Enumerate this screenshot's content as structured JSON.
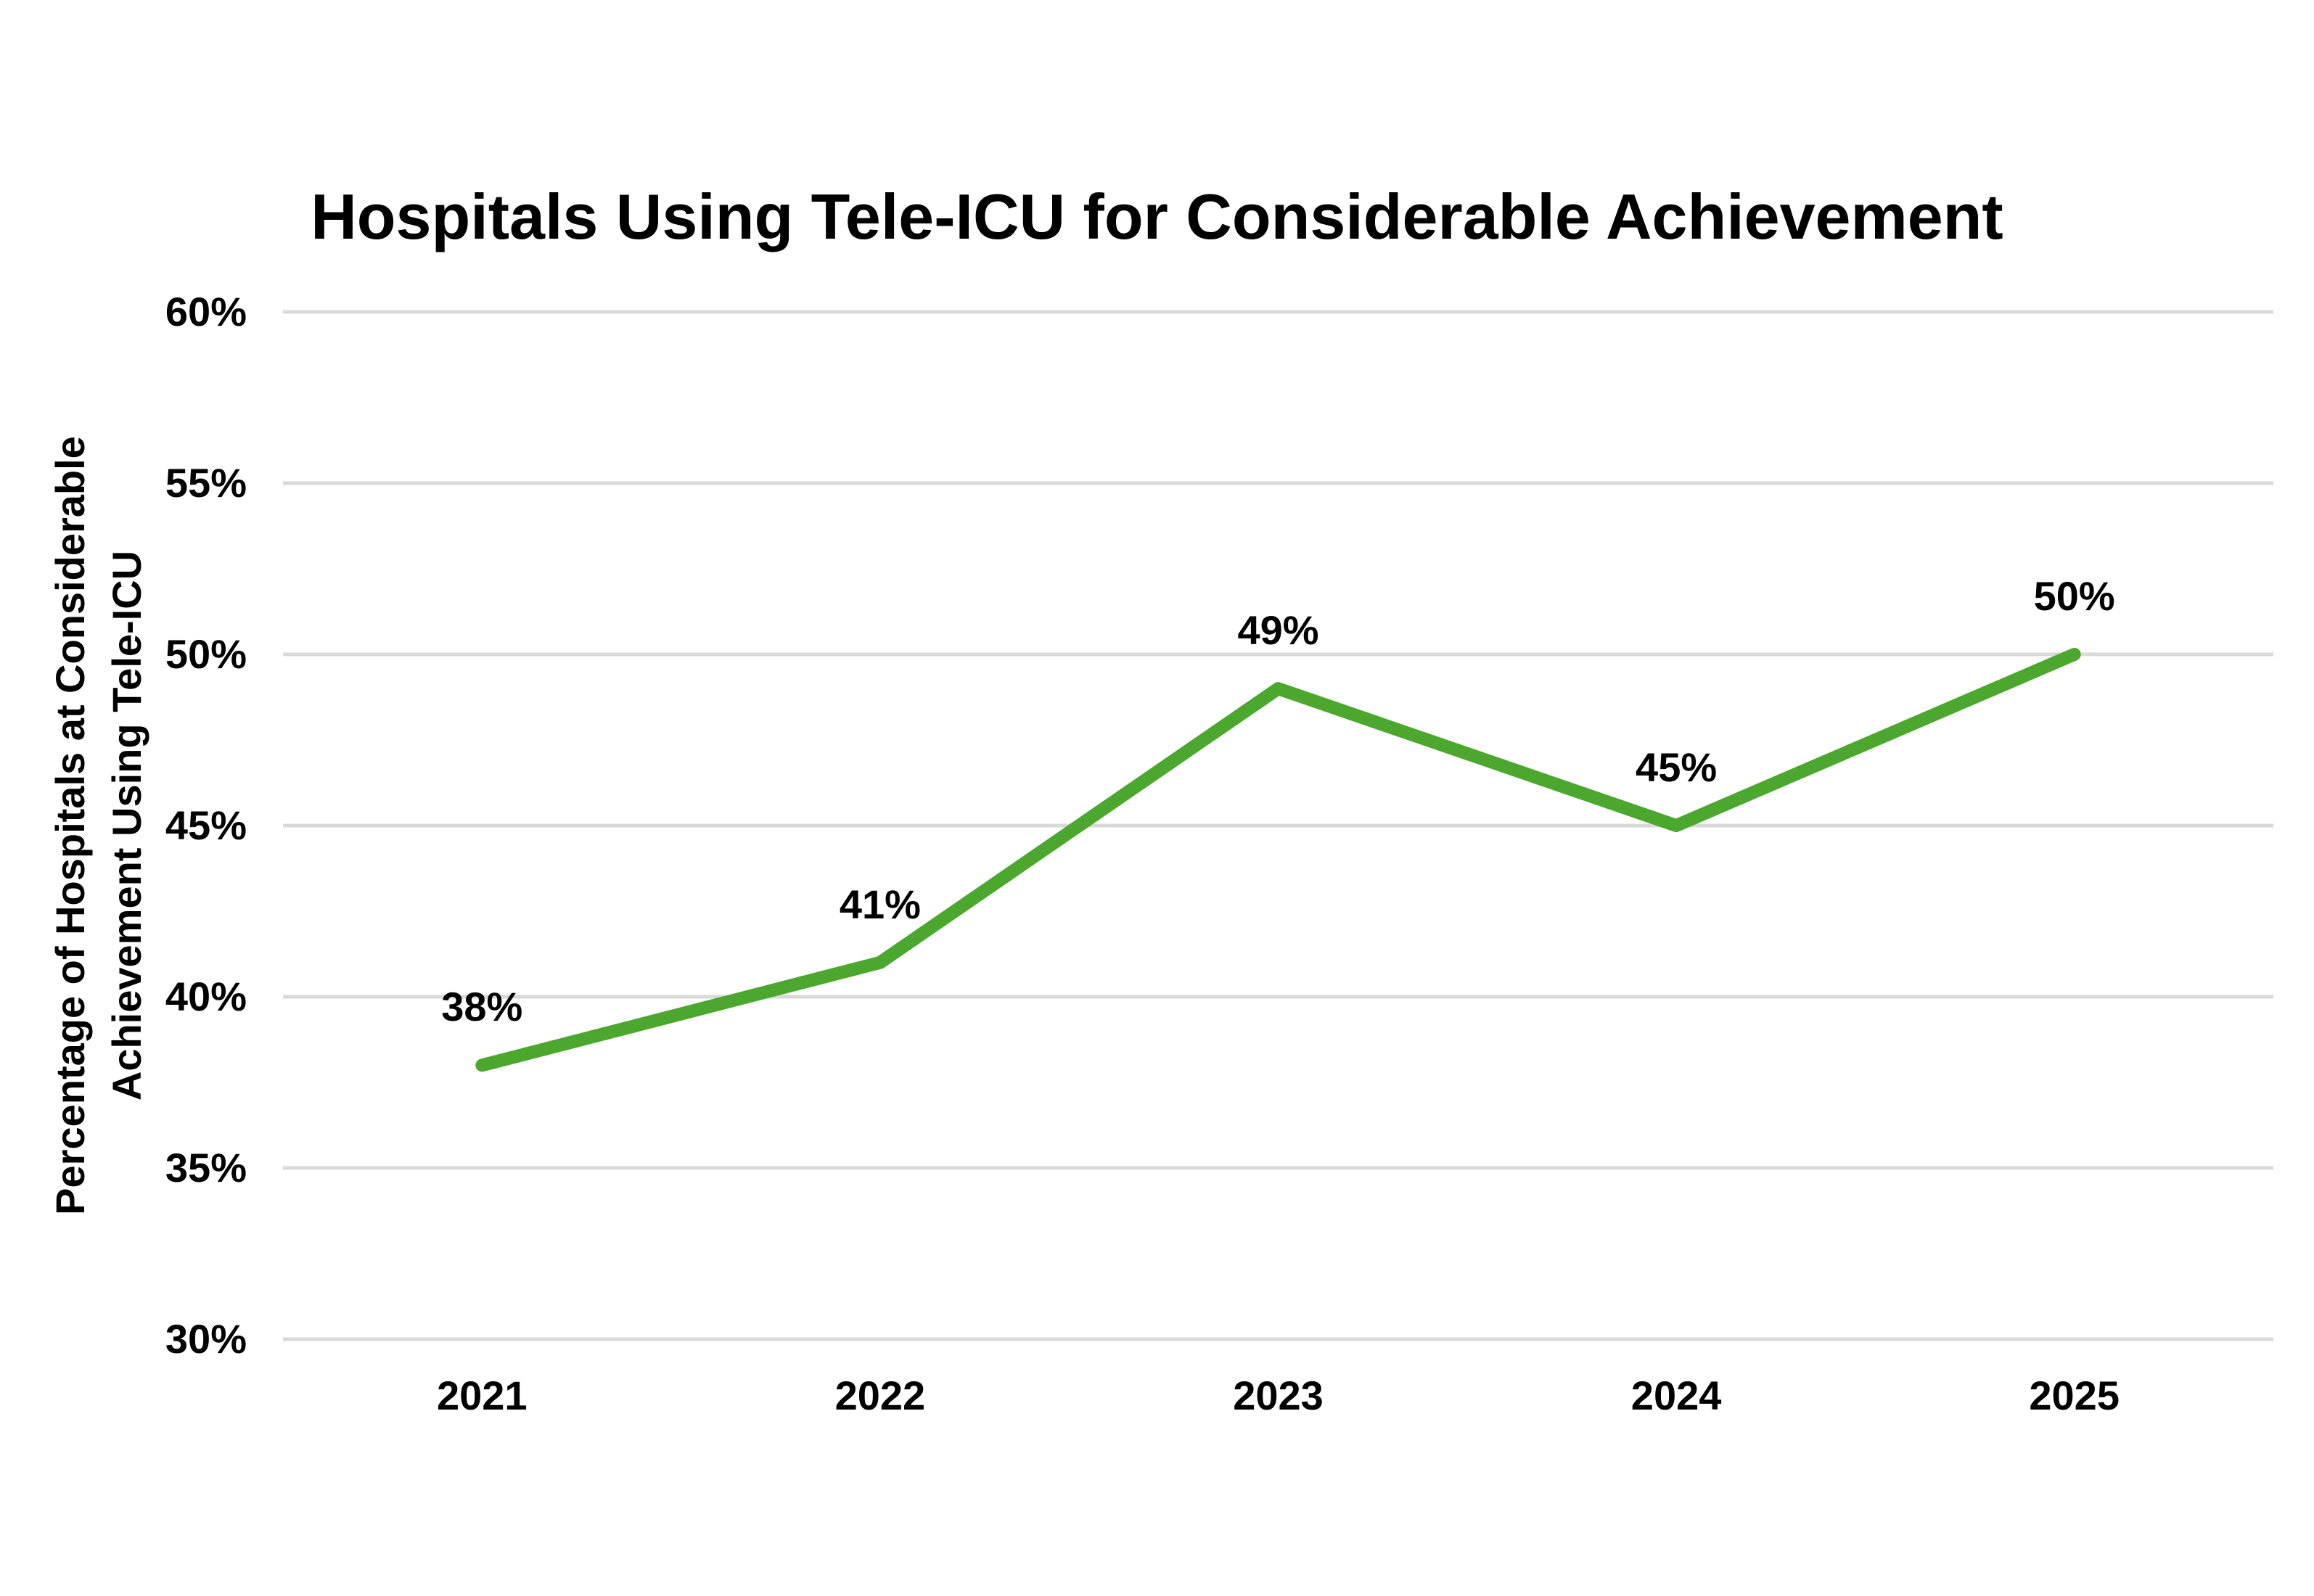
{
  "chart_data": {
    "type": "line",
    "title": "Hospitals Using Tele-ICU for Considerable Achievement",
    "categories": [
      "2021",
      "2022",
      "2023",
      "2024",
      "2025"
    ],
    "values": [
      38,
      41,
      49,
      45,
      50
    ],
    "data_labels": [
      "38%",
      "41%",
      "49%",
      "45%",
      "50%"
    ],
    "xlabel": "",
    "ylabel": "Percentage of Hospitals at Considerable Achievement Using Tele-ICU",
    "ylabel_lines": [
      "Percentage of Hospitals at Considerable",
      "Achievement Using Tele-ICU"
    ],
    "ylim": [
      30,
      60
    ],
    "ytick_step": 5,
    "ytick_labels": [
      "30%",
      "35%",
      "40%",
      "45%",
      "50%",
      "55%",
      "60%"
    ],
    "grid": "horizontal-only",
    "legend": "none",
    "line_color": "#4CA72F",
    "gridline_color": "#D9D9D9",
    "label_color": "#000000",
    "background_color": "#FFFFFF"
  }
}
